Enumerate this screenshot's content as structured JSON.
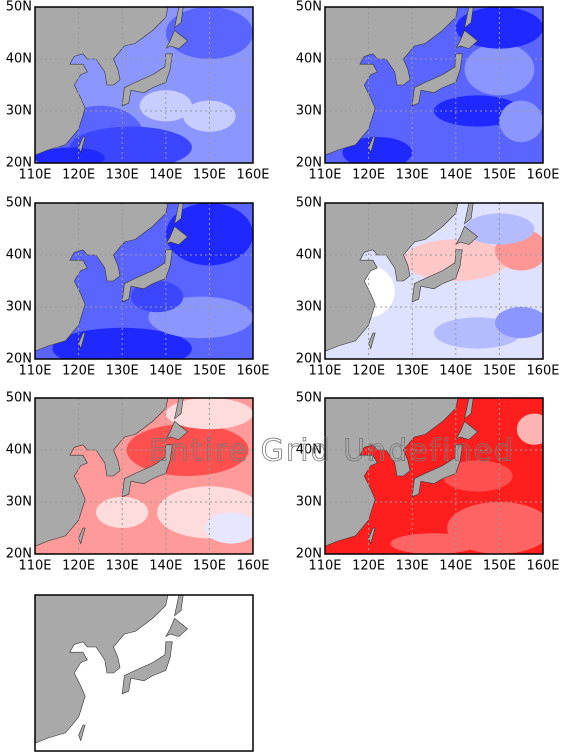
{
  "panels": [
    {
      "xlim": [
        110,
        160
      ],
      "ylim": [
        20,
        50
      ],
      "xticks": [
        {
          "value": 110,
          "label": "110E"
        },
        {
          "value": 120,
          "label": "120E"
        },
        {
          "value": 130,
          "label": "130E"
        },
        {
          "value": 140,
          "label": "140E"
        },
        {
          "value": 150,
          "label": "150E"
        },
        {
          "value": 160,
          "label": "160E"
        }
      ],
      "yticks": [
        {
          "value": 20,
          "label": "20N"
        },
        {
          "value": 30,
          "label": "30N"
        },
        {
          "value": 40,
          "label": "40N"
        },
        {
          "value": 50,
          "label": "50N"
        }
      ]
    },
    {
      "xlim": [
        110,
        160
      ],
      "ylim": [
        20,
        50
      ],
      "xticks": [
        {
          "value": 110,
          "label": "110E"
        },
        {
          "value": 120,
          "label": "120E"
        },
        {
          "value": 130,
          "label": "130E"
        },
        {
          "value": 140,
          "label": "140E"
        },
        {
          "value": 150,
          "label": "150E"
        },
        {
          "value": 160,
          "label": "160E"
        }
      ],
      "yticks": [
        {
          "value": 20,
          "label": "20N"
        },
        {
          "value": 30,
          "label": "30N"
        },
        {
          "value": 40,
          "label": "40N"
        },
        {
          "value": 50,
          "label": "50N"
        }
      ]
    },
    {
      "xlim": [
        110,
        160
      ],
      "ylim": [
        20,
        50
      ],
      "xticks": [
        {
          "value": 110,
          "label": "110E"
        },
        {
          "value": 120,
          "label": "120E"
        },
        {
          "value": 130,
          "label": "130E"
        },
        {
          "value": 140,
          "label": "140E"
        },
        {
          "value": 150,
          "label": "150E"
        },
        {
          "value": 160,
          "label": "160E"
        }
      ],
      "yticks": [
        {
          "value": 20,
          "label": "20N"
        },
        {
          "value": 30,
          "label": "30N"
        },
        {
          "value": 40,
          "label": "40N"
        },
        {
          "value": 50,
          "label": "50N"
        }
      ]
    },
    {
      "xlim": [
        110,
        160
      ],
      "ylim": [
        20,
        50
      ],
      "xticks": [
        {
          "value": 110,
          "label": "110E"
        },
        {
          "value": 120,
          "label": "120E"
        },
        {
          "value": 130,
          "label": "130E"
        },
        {
          "value": 140,
          "label": "140E"
        },
        {
          "value": 150,
          "label": "150E"
        },
        {
          "value": 160,
          "label": "160E"
        }
      ],
      "yticks": [
        {
          "value": 20,
          "label": "20N"
        },
        {
          "value": 30,
          "label": "30N"
        },
        {
          "value": 40,
          "label": "40N"
        },
        {
          "value": 50,
          "label": "50N"
        }
      ]
    },
    {
      "xlim": [
        110,
        160
      ],
      "ylim": [
        20,
        50
      ],
      "xticks": [
        {
          "value": 110,
          "label": "110E"
        },
        {
          "value": 120,
          "label": "120E"
        },
        {
          "value": 130,
          "label": "130E"
        },
        {
          "value": 140,
          "label": "140E"
        },
        {
          "value": 150,
          "label": "150E"
        },
        {
          "value": 160,
          "label": "160E"
        }
      ],
      "yticks": [
        {
          "value": 20,
          "label": "20N"
        },
        {
          "value": 30,
          "label": "30N"
        },
        {
          "value": 40,
          "label": "40N"
        },
        {
          "value": 50,
          "label": "50N"
        }
      ]
    },
    {
      "xlim": [
        110,
        160
      ],
      "ylim": [
        20,
        50
      ],
      "xticks": [
        {
          "value": 110,
          "label": "110E"
        },
        {
          "value": 120,
          "label": "120E"
        },
        {
          "value": 130,
          "label": "130E"
        },
        {
          "value": 140,
          "label": "140E"
        },
        {
          "value": 150,
          "label": "150E"
        },
        {
          "value": 160,
          "label": "160E"
        }
      ],
      "yticks": [
        {
          "value": 20,
          "label": "20N"
        },
        {
          "value": 30,
          "label": "30N"
        },
        {
          "value": 40,
          "label": "40N"
        },
        {
          "value": 50,
          "label": "50N"
        }
      ]
    },
    {
      "xlim": [
        110,
        160
      ],
      "ylim": [
        20,
        50
      ]
    }
  ],
  "annotation": "Entire Grid Undefined"
}
